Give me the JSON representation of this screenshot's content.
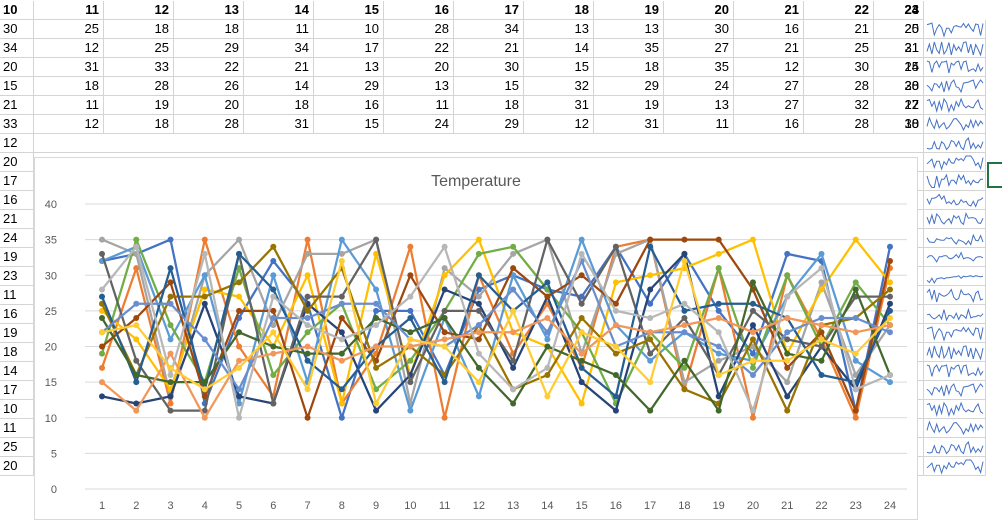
{
  "sheet": {
    "header_row": [
      "10",
      "11",
      "12",
      "13",
      "14",
      "15",
      "16",
      "17",
      "18",
      "19",
      "20",
      "21",
      "22",
      "23",
      "24"
    ],
    "rows": [
      [
        "30",
        "25",
        "18",
        "18",
        "11",
        "10",
        "28",
        "34",
        "13",
        "13",
        "30",
        "16",
        "21",
        "20",
        "25"
      ],
      [
        "34",
        "12",
        "25",
        "29",
        "34",
        "17",
        "22",
        "21",
        "14",
        "35",
        "27",
        "21",
        "25",
        "21",
        "31"
      ],
      [
        "20",
        "31",
        "33",
        "22",
        "21",
        "13",
        "20",
        "30",
        "15",
        "18",
        "35",
        "12",
        "30",
        "24",
        "15"
      ],
      [
        "15",
        "18",
        "28",
        "26",
        "14",
        "29",
        "13",
        "15",
        "32",
        "29",
        "24",
        "27",
        "28",
        "30",
        "28"
      ],
      [
        "21",
        "11",
        "19",
        "20",
        "18",
        "16",
        "11",
        "18",
        "31",
        "19",
        "13",
        "27",
        "32",
        "12",
        "27"
      ],
      [
        "33",
        "12",
        "18",
        "28",
        "31",
        "15",
        "24",
        "29",
        "12",
        "31",
        "11",
        "16",
        "28",
        "30",
        "18"
      ],
      [
        "12"
      ],
      [
        "20"
      ],
      [
        "17"
      ],
      [
        "16"
      ],
      [
        "21"
      ],
      [
        "24"
      ],
      [
        "19"
      ],
      [
        "23"
      ],
      [
        "11"
      ],
      [
        "16"
      ],
      [
        "19"
      ],
      [
        "18"
      ],
      [
        "14"
      ],
      [
        "17"
      ],
      [
        "10"
      ],
      [
        "11"
      ],
      [
        "25"
      ],
      [
        "20"
      ]
    ]
  },
  "chart_data": {
    "type": "line",
    "title": "Temperature",
    "xlabel": "",
    "ylabel": "",
    "categories": [
      "1",
      "2",
      "3",
      "4",
      "5",
      "6",
      "7",
      "8",
      "9",
      "10",
      "11",
      "12",
      "13",
      "14",
      "15",
      "16",
      "17",
      "18",
      "19",
      "20",
      "21",
      "22",
      "23",
      "24"
    ],
    "ylim": [
      0,
      40
    ],
    "yticks": [
      "0",
      "5",
      "10",
      "15",
      "20",
      "25",
      "30",
      "35",
      "40"
    ],
    "grid": true,
    "legend": "none",
    "series": [
      {
        "color": "#4472C4",
        "values": [
          32,
          33,
          35,
          12,
          24,
          32,
          26,
          10,
          25,
          25,
          16,
          28,
          30,
          28,
          27,
          34,
          26,
          33,
          25,
          19,
          33,
          32,
          11,
          34
        ]
      },
      {
        "color": "#ED7D31",
        "values": [
          17,
          31,
          12,
          35,
          20,
          13,
          35,
          12,
          19,
          34,
          10,
          30,
          19,
          26,
          17,
          34,
          35,
          14,
          31,
          10,
          30,
          21,
          10,
          31
        ]
      },
      {
        "color": "#A5A5A5",
        "values": [
          35,
          33,
          13,
          30,
          35,
          23,
          33,
          33,
          35,
          12,
          31,
          27,
          33,
          35,
          19,
          33,
          35,
          15,
          18,
          20,
          15,
          29,
          16,
          23
        ]
      },
      {
        "color": "#FFC000",
        "values": [
          25,
          21,
          14,
          28,
          27,
          20,
          30,
          12,
          33,
          16,
          30,
          35,
          22,
          20,
          12,
          29,
          30,
          31,
          33,
          35,
          19,
          28,
          35,
          29
        ]
      },
      {
        "color": "#5B9BD5",
        "values": [
          32,
          34,
          21,
          30,
          12,
          30,
          15,
          35,
          28,
          11,
          24,
          13,
          30,
          21,
          35,
          23,
          18,
          22,
          19,
          18,
          27,
          33,
          18,
          15
        ]
      },
      {
        "color": "#70AD47",
        "values": [
          19,
          35,
          23,
          15,
          31,
          16,
          22,
          26,
          14,
          18,
          25,
          33,
          34,
          28,
          22,
          12,
          22,
          17,
          31,
          17,
          30,
          20,
          29,
          23
        ]
      },
      {
        "color": "#264478",
        "values": [
          13,
          12,
          13,
          26,
          13,
          12,
          26,
          22,
          11,
          16,
          28,
          26,
          17,
          27,
          15,
          11,
          28,
          33,
          13,
          23,
          13,
          20,
          14,
          26
        ]
      },
      {
        "color": "#9E480E",
        "values": [
          20,
          24,
          29,
          13,
          25,
          25,
          10,
          24,
          18,
          30,
          22,
          21,
          31,
          27,
          30,
          26,
          35,
          35,
          35,
          28,
          17,
          22,
          11,
          32
        ]
      },
      {
        "color": "#636363",
        "values": [
          33,
          18,
          11,
          11,
          33,
          12,
          27,
          27,
          35,
          15,
          25,
          25,
          18,
          35,
          26,
          34,
          19,
          24,
          16,
          25,
          21,
          20,
          27,
          27
        ]
      },
      {
        "color": "#997300",
        "values": [
          26,
          16,
          27,
          27,
          29,
          34,
          25,
          31,
          17,
          20,
          16,
          23,
          14,
          16,
          24,
          19,
          21,
          14,
          12,
          21,
          11,
          23,
          24,
          28
        ]
      },
      {
        "color": "#255E91",
        "values": [
          27,
          15,
          31,
          14,
          33,
          28,
          18,
          14,
          20,
          24,
          15,
          30,
          25,
          29,
          17,
          13,
          34,
          25,
          26,
          26,
          24,
          16,
          15,
          25
        ]
      },
      {
        "color": "#43682B",
        "values": [
          24,
          16,
          15,
          15,
          22,
          20,
          19,
          19,
          24,
          22,
          24,
          17,
          12,
          20,
          18,
          16,
          11,
          18,
          11,
          29,
          19,
          18,
          28,
          16
        ]
      },
      {
        "color": "#698ED0",
        "values": [
          22,
          26,
          26,
          21,
          14,
          24,
          24,
          26,
          26,
          21,
          20,
          23,
          28,
          22,
          32,
          20,
          22,
          22,
          20,
          16,
          22,
          24,
          24,
          22
        ]
      },
      {
        "color": "#F1975A",
        "values": [
          15,
          11,
          19,
          10,
          18,
          19,
          20,
          18,
          20,
          20,
          21,
          22,
          22,
          24,
          19,
          23,
          22,
          23,
          24,
          22,
          24,
          23,
          22,
          23
        ]
      },
      {
        "color": "#B7B7B7",
        "values": [
          28,
          34,
          16,
          33,
          10,
          27,
          23,
          21,
          23,
          27,
          34,
          19,
          14,
          17,
          33,
          25,
          24,
          26,
          22,
          11,
          27,
          31,
          14,
          16
        ]
      },
      {
        "color": "#FFCD33",
        "values": [
          22,
          23,
          17,
          14,
          17,
          22,
          14,
          32,
          12,
          21,
          20,
          15,
          25,
          13,
          22,
          20,
          15,
          32,
          16,
          18,
          18,
          21,
          19,
          24
        ]
      }
    ]
  }
}
